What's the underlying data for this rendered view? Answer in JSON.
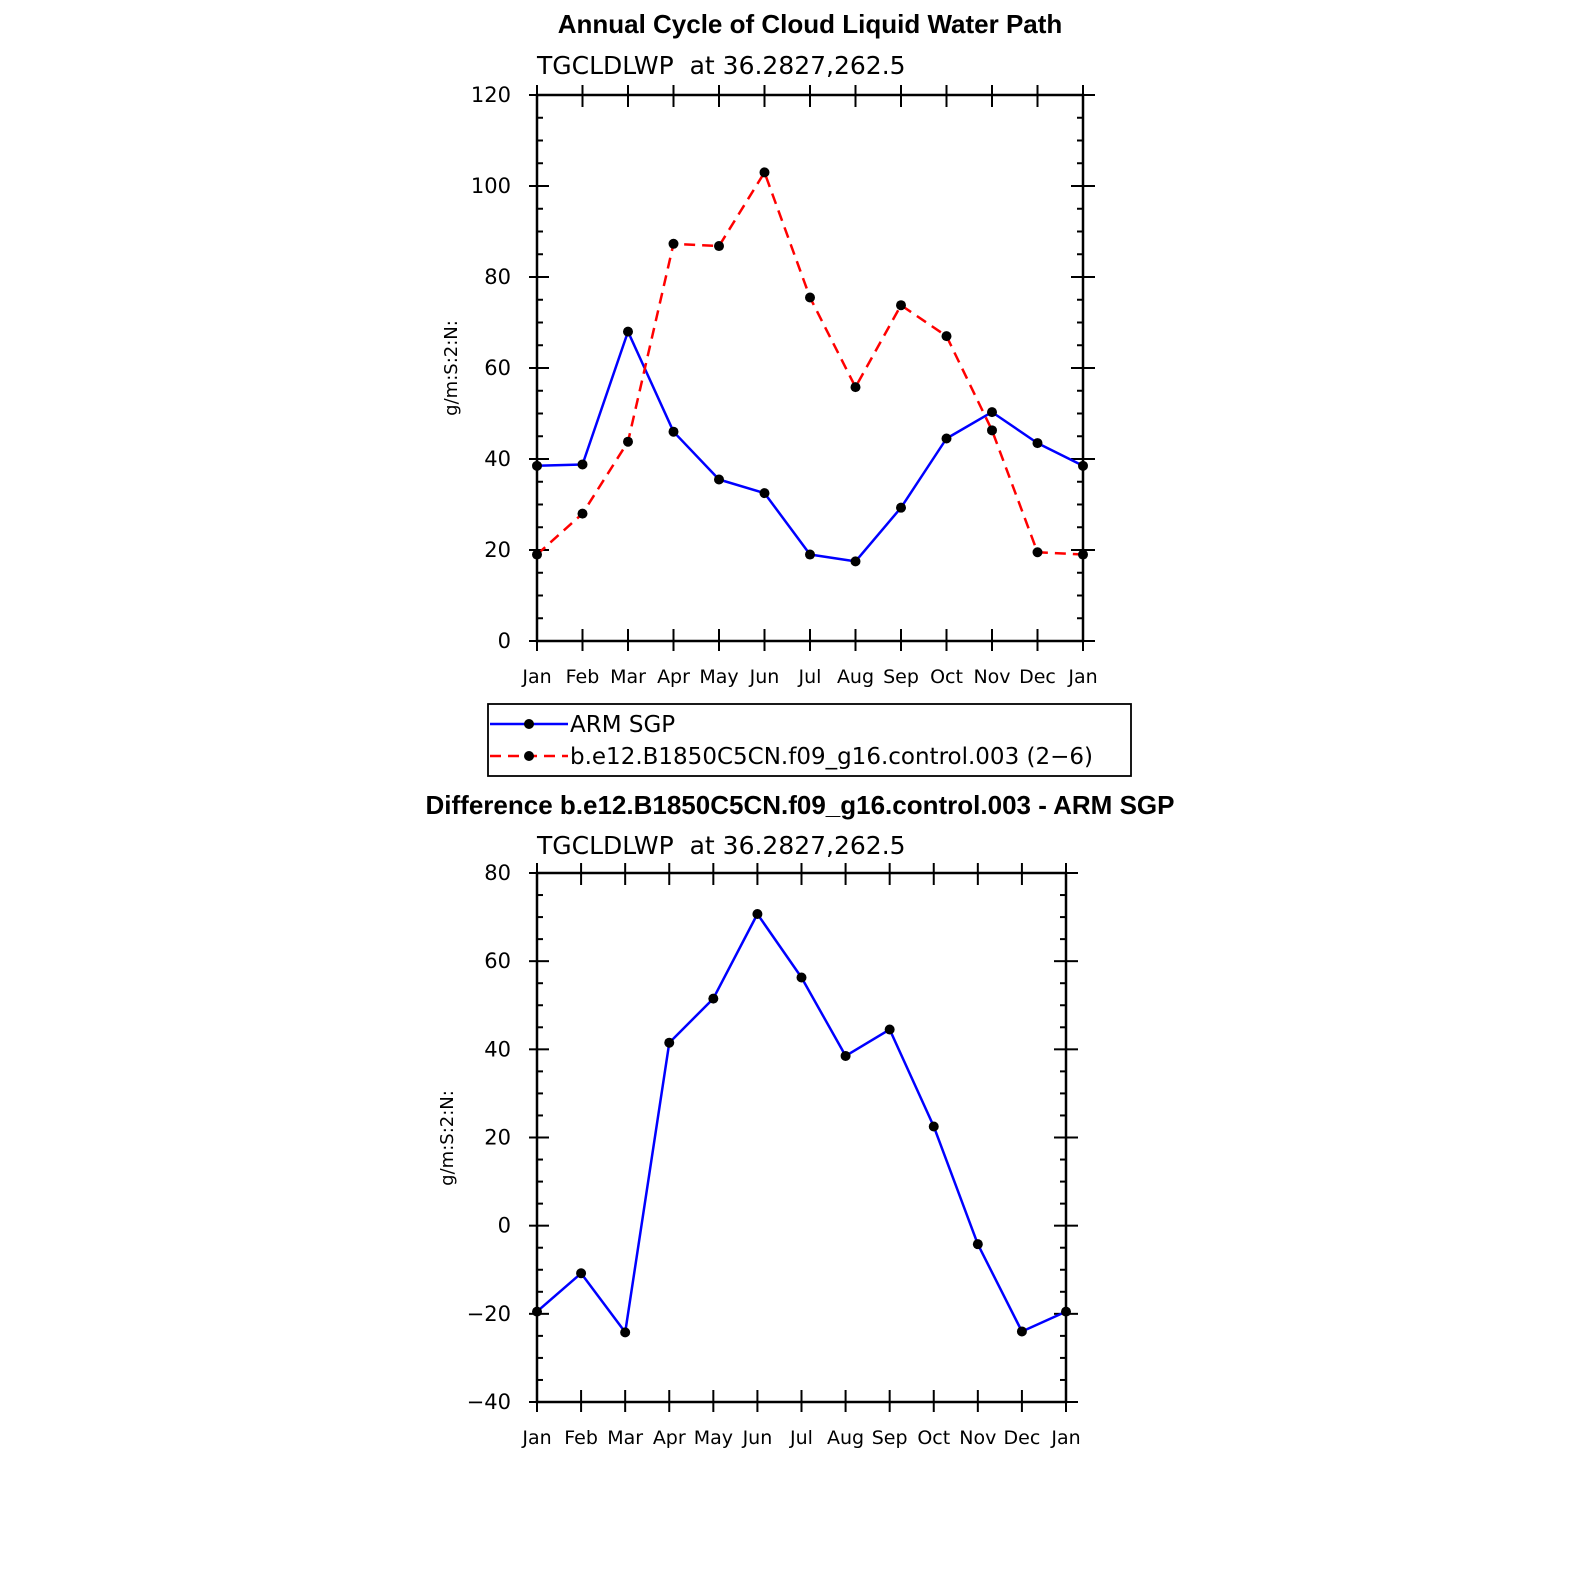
{
  "chart_data": [
    {
      "type": "line",
      "title": "Annual Cycle of Cloud Liquid Water Path",
      "subtitle": "TGCLDLWP  at 36.2827,262.5",
      "xlabel": "",
      "ylabel": "g/m:S:2:N:",
      "ylim": [
        0,
        120
      ],
      "yticks": [
        0,
        20,
        40,
        60,
        80,
        100,
        120
      ],
      "categories": [
        "Jan",
        "Feb",
        "Mar",
        "Apr",
        "May",
        "Jun",
        "Jul",
        "Aug",
        "Sep",
        "Oct",
        "Nov",
        "Dec",
        "Jan"
      ],
      "grid": false,
      "legend_position": "below",
      "series": [
        {
          "name": "ARM SGP",
          "color": "#0000ff",
          "dash": "solid",
          "values": [
            38.5,
            38.8,
            68.0,
            46.0,
            35.5,
            32.5,
            19.0,
            17.5,
            29.3,
            44.5,
            50.3,
            43.5,
            38.5
          ]
        },
        {
          "name": "b.e12.B1850C5CN.f09_g16.control.003 (2−6)",
          "color": "#ff0000",
          "dash": "dashed",
          "values": [
            19.0,
            28.0,
            43.8,
            87.3,
            86.8,
            103.0,
            75.5,
            55.8,
            73.8,
            67.0,
            46.3,
            19.5,
            19.0
          ]
        }
      ]
    },
    {
      "type": "line",
      "title": "Difference b.e12.B1850C5CN.f09_g16.control.003 - ARM SGP",
      "subtitle": "TGCLDLWP  at 36.2827,262.5",
      "xlabel": "",
      "ylabel": "g/m:S:2:N:",
      "ylim": [
        -40,
        80
      ],
      "yticks": [
        -40,
        -20,
        0,
        20,
        40,
        60,
        80
      ],
      "categories": [
        "Jan",
        "Feb",
        "Mar",
        "Apr",
        "May",
        "Jun",
        "Jul",
        "Aug",
        "Sep",
        "Oct",
        "Nov",
        "Dec",
        "Jan"
      ],
      "grid": false,
      "series": [
        {
          "color": "#0000ff",
          "dash": "solid",
          "values": [
            -19.5,
            -10.8,
            -24.2,
            41.5,
            51.5,
            70.7,
            56.3,
            38.5,
            44.5,
            22.5,
            -4.2,
            -24.0,
            -19.5
          ]
        }
      ]
    }
  ]
}
